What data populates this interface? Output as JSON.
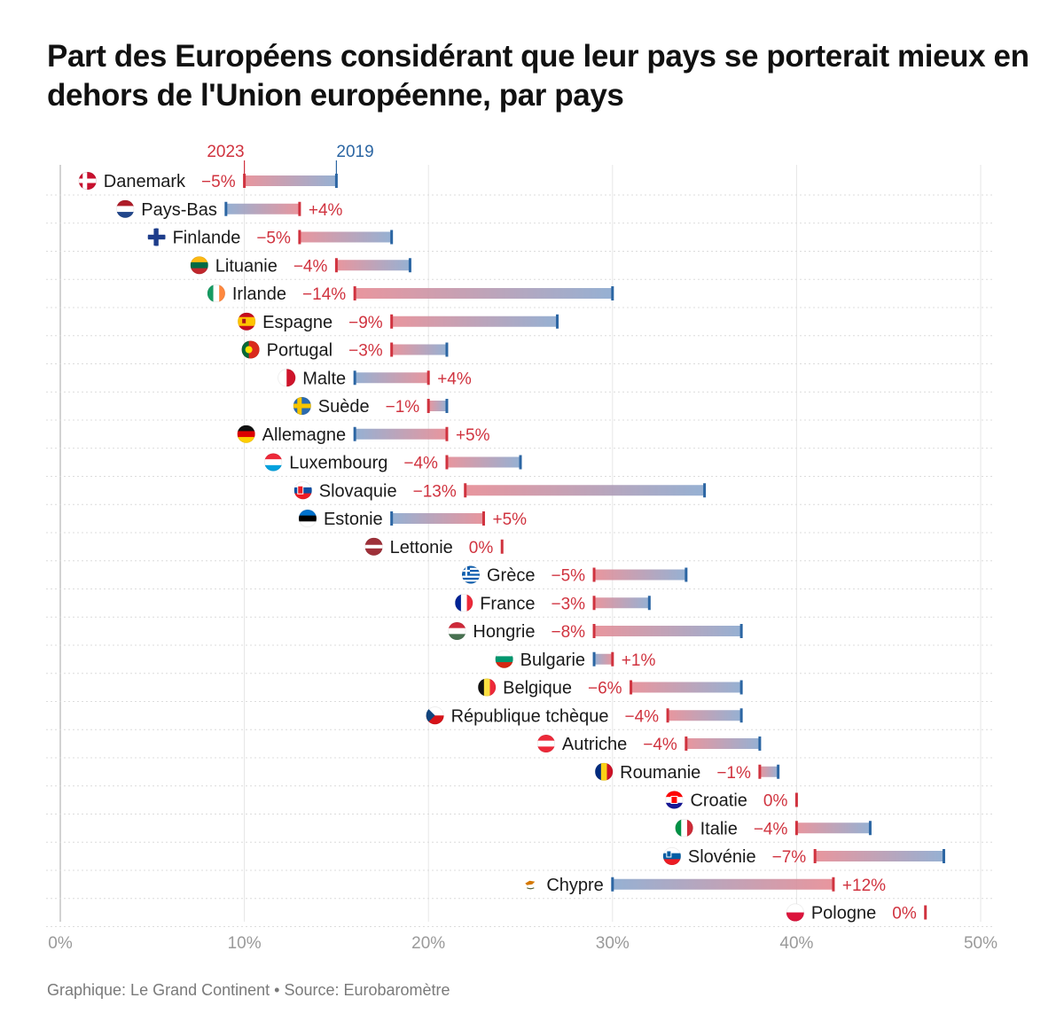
{
  "title": "Part des Européens considérant que leur pays se porterait mieux en dehors de l'Union européenne, par pays",
  "source": "Graphique: Le Grand Continent • Source: Eurobaromètre",
  "colors": {
    "y2023": "#d0333f",
    "y2019": "#2c66a3",
    "tick": "#9a9a9a"
  },
  "chart_data": {
    "type": "dumbbell",
    "series": [
      {
        "name": "2023",
        "key": "v2023"
      },
      {
        "name": "2019",
        "key": "v2019"
      }
    ],
    "xlim": [
      0,
      50
    ],
    "xticks": [
      {
        "value": 0,
        "label": "0%"
      },
      {
        "value": 10,
        "label": "10%"
      },
      {
        "value": 20,
        "label": "20%"
      },
      {
        "value": 30,
        "label": "30%"
      },
      {
        "value": 40,
        "label": "40%"
      },
      {
        "value": 50,
        "label": "50%"
      }
    ],
    "rows": [
      {
        "country": "Danemark",
        "v2019": 15,
        "v2023": 10,
        "change": "−5%",
        "flag": "denmark-flag-icon"
      },
      {
        "country": "Pays-Bas",
        "v2019": 9,
        "v2023": 13,
        "change": "+4%",
        "flag": "netherlands-flag-icon"
      },
      {
        "country": "Finlande",
        "v2019": 18,
        "v2023": 13,
        "change": "−5%",
        "flag": "finland-flag-icon"
      },
      {
        "country": "Lituanie",
        "v2019": 19,
        "v2023": 15,
        "change": "−4%",
        "flag": "lithuania-flag-icon"
      },
      {
        "country": "Irlande",
        "v2019": 30,
        "v2023": 16,
        "change": "−14%",
        "flag": "ireland-flag-icon"
      },
      {
        "country": "Espagne",
        "v2019": 27,
        "v2023": 18,
        "change": "−9%",
        "flag": "spain-flag-icon"
      },
      {
        "country": "Portugal",
        "v2019": 21,
        "v2023": 18,
        "change": "−3%",
        "flag": "portugal-flag-icon"
      },
      {
        "country": "Malte",
        "v2019": 16,
        "v2023": 20,
        "change": "+4%",
        "flag": "malta-flag-icon"
      },
      {
        "country": "Suède",
        "v2019": 21,
        "v2023": 20,
        "change": "−1%",
        "flag": "sweden-flag-icon"
      },
      {
        "country": "Allemagne",
        "v2019": 16,
        "v2023": 21,
        "change": "+5%",
        "flag": "germany-flag-icon"
      },
      {
        "country": "Luxembourg",
        "v2019": 25,
        "v2023": 21,
        "change": "−4%",
        "flag": "luxembourg-flag-icon"
      },
      {
        "country": "Slovaquie",
        "v2019": 35,
        "v2023": 22,
        "change": "−13%",
        "flag": "slovakia-flag-icon"
      },
      {
        "country": "Estonie",
        "v2019": 18,
        "v2023": 23,
        "change": "+5%",
        "flag": "estonia-flag-icon"
      },
      {
        "country": "Lettonie",
        "v2019": 24,
        "v2023": 24,
        "change": "0%",
        "flag": "latvia-flag-icon"
      },
      {
        "country": "Grèce",
        "v2019": 34,
        "v2023": 29,
        "change": "−5%",
        "flag": "greece-flag-icon"
      },
      {
        "country": "France",
        "v2019": 32,
        "v2023": 29,
        "change": "−3%",
        "flag": "france-flag-icon"
      },
      {
        "country": "Hongrie",
        "v2019": 37,
        "v2023": 29,
        "change": "−8%",
        "flag": "hungary-flag-icon"
      },
      {
        "country": "Bulgarie",
        "v2019": 29,
        "v2023": 30,
        "change": "+1%",
        "flag": "bulgaria-flag-icon"
      },
      {
        "country": "Belgique",
        "v2019": 37,
        "v2023": 31,
        "change": "−6%",
        "flag": "belgium-flag-icon"
      },
      {
        "country": "République tchèque",
        "v2019": 37,
        "v2023": 33,
        "change": "−4%",
        "flag": "czech-flag-icon"
      },
      {
        "country": "Autriche",
        "v2019": 38,
        "v2023": 34,
        "change": "−4%",
        "flag": "austria-flag-icon"
      },
      {
        "country": "Roumanie",
        "v2019": 39,
        "v2023": 38,
        "change": "−1%",
        "flag": "romania-flag-icon"
      },
      {
        "country": "Croatie",
        "v2019": 40,
        "v2023": 40,
        "change": "0%",
        "flag": "croatia-flag-icon"
      },
      {
        "country": "Italie",
        "v2019": 44,
        "v2023": 40,
        "change": "−4%",
        "flag": "italy-flag-icon"
      },
      {
        "country": "Slovénie",
        "v2019": 48,
        "v2023": 41,
        "change": "−7%",
        "flag": "slovenia-flag-icon"
      },
      {
        "country": "Chypre",
        "v2019": 30,
        "v2023": 42,
        "change": "+12%",
        "flag": "cyprus-flag-icon"
      },
      {
        "country": "Pologne",
        "v2019": 47,
        "v2023": 47,
        "change": "0%",
        "flag": "poland-flag-icon"
      }
    ]
  }
}
